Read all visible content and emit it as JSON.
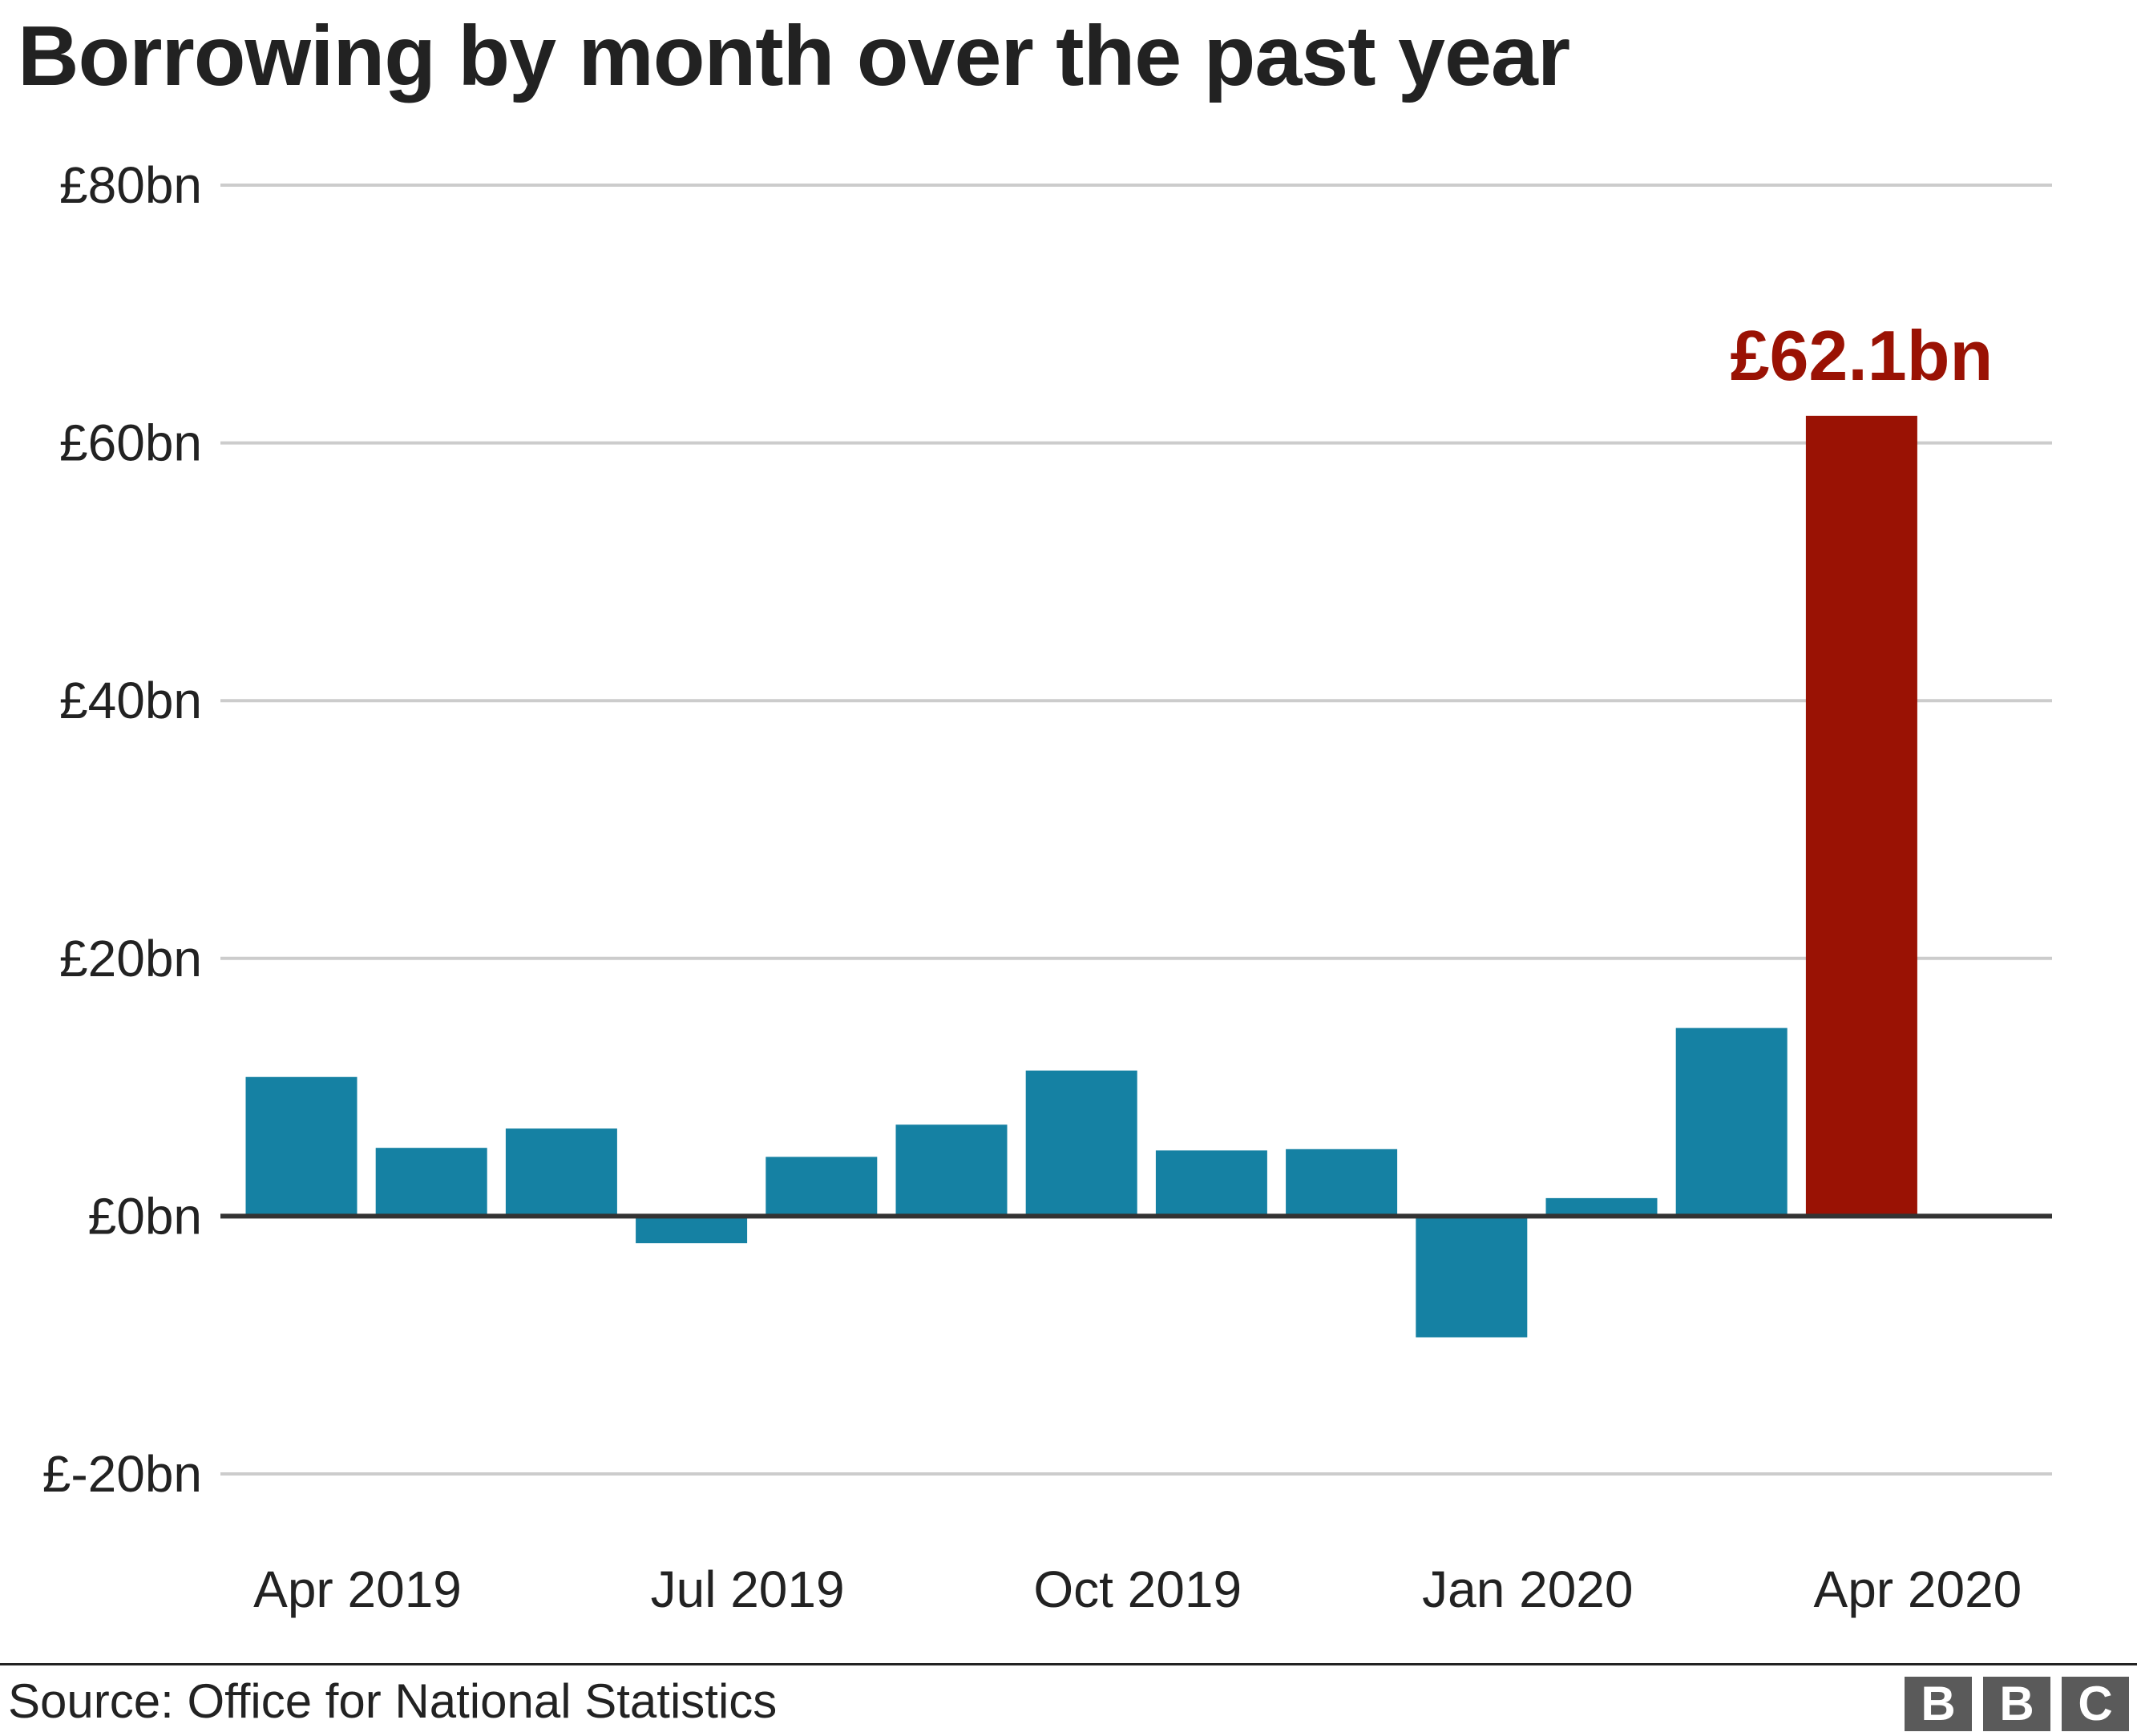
{
  "title": "Borrowing by month over the past year",
  "source": "Source: Office for National Statistics",
  "logo": [
    "B",
    "B",
    "C"
  ],
  "colors": {
    "bar": "#1581a3",
    "highlight": "#9a1204",
    "grid": "#cccccc",
    "zero_line": "#333333",
    "text": "#222222"
  },
  "chart_data": {
    "type": "bar",
    "title": "Borrowing by month over the past year",
    "xlabel": "",
    "ylabel": "",
    "categories": [
      "Apr 2019",
      "May 2019",
      "Jun 2019",
      "Jul 2019",
      "Aug 2019",
      "Sep 2019",
      "Oct 2019",
      "Nov 2019",
      "Dec 2019",
      "Jan 2020",
      "Feb 2020",
      "Mar 2020",
      "Apr 2020"
    ],
    "values": [
      10.8,
      5.3,
      6.8,
      -2.1,
      4.6,
      7.1,
      11.3,
      5.1,
      5.2,
      -9.4,
      1.4,
      14.6,
      62.1
    ],
    "highlight_index": 12,
    "highlight_label": "£62.1bn",
    "ylim": [
      -20,
      80
    ],
    "yticks": [
      80,
      60,
      40,
      20,
      0,
      -20
    ],
    "ytick_labels": [
      "£80bn",
      "£60bn",
      "£40bn",
      "£20bn",
      "£0bn",
      "£-20bn"
    ],
    "xtick_labels": [
      "Apr 2019",
      "Jul 2019",
      "Oct 2019",
      "Jan 2020",
      "Apr 2020"
    ],
    "xtick_indices": [
      0,
      3,
      6,
      9,
      12
    ],
    "grid": true,
    "legend": "none"
  }
}
